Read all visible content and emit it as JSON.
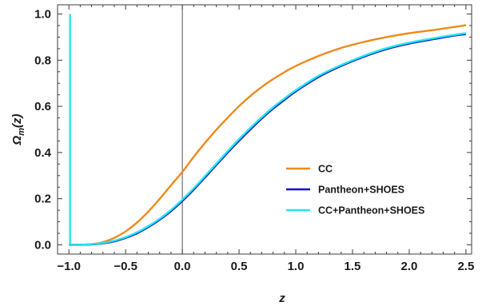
{
  "chart_data": {
    "type": "line",
    "xlabel": "z",
    "ylabel": "Ω_m(z)",
    "xlim": [
      -1.1,
      2.55
    ],
    "ylim": [
      -0.04,
      1.04
    ],
    "x_ticks": [
      -1.0,
      -0.5,
      0.0,
      0.5,
      1.0,
      1.5,
      2.0,
      2.5
    ],
    "x_tick_labels": [
      "−1.0",
      "−0.5",
      "0.0",
      "0.5",
      "1.0",
      "1.5",
      "2.0",
      "2.5"
    ],
    "y_ticks": [
      0.0,
      0.2,
      0.4,
      0.6,
      0.8,
      1.0
    ],
    "y_tick_labels": [
      "0.0",
      "0.2",
      "0.4",
      "0.6",
      "0.8",
      "1.0"
    ],
    "grid": false,
    "legend_position": "lower-right",
    "vertical_reference_line_x": 0.0,
    "series": [
      {
        "name": "CC",
        "color": "#ee8a1a",
        "x": [
          -1.0,
          -0.9,
          -0.8,
          -0.7,
          -0.6,
          -0.5,
          -0.4,
          -0.3,
          -0.2,
          -0.1,
          0.0,
          0.1,
          0.2,
          0.3,
          0.4,
          0.5,
          0.6,
          0.7,
          0.8,
          0.9,
          1.0,
          1.2,
          1.4,
          1.6,
          1.8,
          2.0,
          2.2,
          2.4,
          2.5
        ],
        "y": [
          0.0,
          0.0,
          0.003,
          0.012,
          0.03,
          0.058,
          0.096,
          0.144,
          0.199,
          0.258,
          0.316,
          0.381,
          0.442,
          0.499,
          0.551,
          0.601,
          0.645,
          0.684,
          0.718,
          0.748,
          0.775,
          0.818,
          0.853,
          0.879,
          0.9,
          0.917,
          0.93,
          0.944,
          0.952
        ]
      },
      {
        "name": "Pantheon+SHOES",
        "color": "#1010c8",
        "x": [
          -1.0,
          -0.9,
          -0.8,
          -0.7,
          -0.6,
          -0.5,
          -0.4,
          -0.3,
          -0.2,
          -0.1,
          0.0,
          0.1,
          0.2,
          0.3,
          0.4,
          0.5,
          0.6,
          0.7,
          0.8,
          0.9,
          1.0,
          1.2,
          1.4,
          1.6,
          1.8,
          2.0,
          2.2,
          2.4,
          2.5
        ],
        "y": [
          0.0,
          0.0,
          0.002,
          0.006,
          0.015,
          0.03,
          0.05,
          0.077,
          0.109,
          0.146,
          0.19,
          0.239,
          0.292,
          0.346,
          0.4,
          0.451,
          0.5,
          0.547,
          0.59,
          0.628,
          0.665,
          0.727,
          0.775,
          0.815,
          0.848,
          0.872,
          0.89,
          0.907,
          0.913
        ]
      },
      {
        "name": "CC+Pantheon+SHOES",
        "color": "#22e6f0",
        "x": [
          -1.0,
          -0.9,
          -0.8,
          -0.7,
          -0.6,
          -0.5,
          -0.4,
          -0.3,
          -0.2,
          -0.1,
          0.0,
          0.1,
          0.2,
          0.3,
          0.4,
          0.5,
          0.6,
          0.7,
          0.8,
          0.9,
          1.0,
          1.2,
          1.4,
          1.6,
          1.8,
          2.0,
          2.2,
          2.4,
          2.5
        ],
        "y": [
          0.0,
          0.0,
          0.003,
          0.008,
          0.018,
          0.033,
          0.054,
          0.081,
          0.113,
          0.151,
          0.196,
          0.245,
          0.298,
          0.352,
          0.406,
          0.458,
          0.507,
          0.553,
          0.596,
          0.634,
          0.67,
          0.732,
          0.779,
          0.819,
          0.852,
          0.876,
          0.894,
          0.91,
          0.917
        ]
      }
    ],
    "spike": {
      "note_series": "CC+Pantheon+SHOES",
      "x": -0.99,
      "y_range": [
        0.0,
        1.0
      ]
    }
  }
}
